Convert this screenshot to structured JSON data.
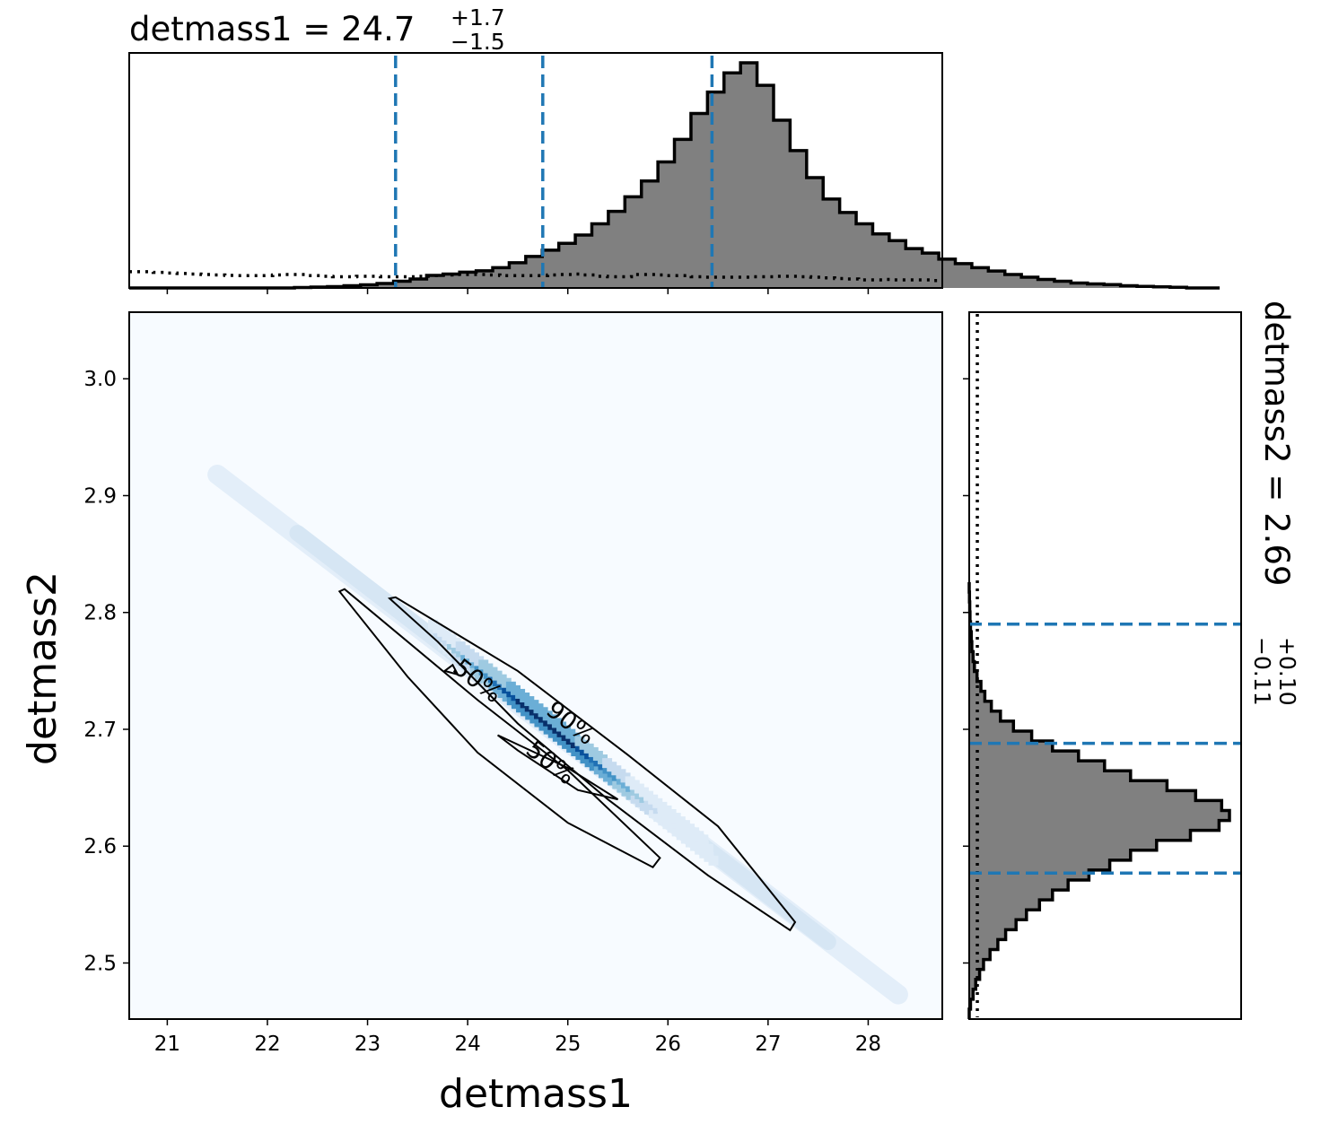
{
  "chart_data": [
    {
      "panel": "marginal-top",
      "type": "step-histogram",
      "parameter": "detmass1",
      "title": {
        "prefix": "detmass1 = ",
        "value": "24.7",
        "upper": "+1.7",
        "lower": "−1.5"
      },
      "xlim": [
        20.62,
        28.74
      ],
      "bin_edges_start": 20.62,
      "bin_width": 0.165,
      "density": [
        0.0,
        0.0,
        0.0,
        0.0,
        0.0,
        0.0,
        0.0,
        0.0,
        0.0,
        0.0,
        0.002,
        0.004,
        0.006,
        0.01,
        0.014,
        0.02,
        0.03,
        0.04,
        0.056,
        0.062,
        0.07,
        0.076,
        0.09,
        0.112,
        0.14,
        0.168,
        0.198,
        0.235,
        0.285,
        0.34,
        0.405,
        0.475,
        0.56,
        0.66,
        0.775,
        0.87,
        0.955,
        1.0,
        0.9,
        0.745,
        0.61,
        0.49,
        0.395,
        0.335,
        0.285,
        0.24,
        0.21,
        0.175,
        0.155,
        0.128,
        0.108,
        0.09,
        0.075,
        0.06,
        0.048,
        0.038,
        0.03,
        0.022,
        0.018,
        0.015,
        0.01,
        0.007,
        0.005,
        0.003,
        0.0,
        0.0
      ],
      "prior_density_dotted": [
        0.072,
        0.072,
        0.069,
        0.066,
        0.064,
        0.062,
        0.06,
        0.058,
        0.056,
        0.055,
        0.055,
        0.055,
        0.058,
        0.06,
        0.06,
        0.055,
        0.052,
        0.05,
        0.05,
        0.052,
        0.052,
        0.05,
        0.05,
        0.05,
        0.052,
        0.055,
        0.058,
        0.06,
        0.06,
        0.06,
        0.058,
        0.055,
        0.055,
        0.055,
        0.055,
        0.058,
        0.06,
        0.062,
        0.058,
        0.052,
        0.05,
        0.05,
        0.06,
        0.06,
        0.058,
        0.055,
        0.055,
        0.05,
        0.048,
        0.048,
        0.048,
        0.048,
        0.05,
        0.05,
        0.052,
        0.052,
        0.05,
        0.048,
        0.045,
        0.042,
        0.04,
        0.036,
        0.036,
        0.038,
        0.036,
        0.036,
        0.036,
        0.033
      ],
      "quantile_lines": [
        23.28,
        24.75,
        26.44
      ],
      "xticks": [
        21,
        22,
        23,
        24,
        25,
        26,
        27,
        28
      ]
    },
    {
      "panel": "joint",
      "type": "heatmap",
      "xlabel": "detmass1",
      "ylabel": "detmass2",
      "xlim": [
        20.62,
        28.74
      ],
      "ylim": [
        2.452,
        3.057
      ],
      "xticks": [
        "21",
        "22",
        "23",
        "24",
        "25",
        "26",
        "27",
        "28"
      ],
      "yticks": [
        "2.5",
        "2.6",
        "2.7",
        "2.8",
        "2.9",
        "3.0"
      ],
      "colormap": "Blues",
      "ridge_line": [
        [
          21.5,
          2.918
        ],
        [
          28.3,
          2.473
        ]
      ],
      "density_ridge": [
        [
          23.8,
          2.775
        ],
        [
          24.2,
          2.75
        ],
        [
          24.6,
          2.724
        ],
        [
          25.0,
          2.698
        ],
        [
          25.4,
          2.672
        ],
        [
          25.8,
          2.646
        ]
      ],
      "contours": [
        {
          "label": "90%",
          "points": [
            [
              22.72,
              2.818
            ],
            [
              22.77,
              2.82
            ],
            [
              24.1,
              2.725
            ],
            [
              25.0,
              2.665
            ],
            [
              25.92,
              2.59
            ],
            [
              25.85,
              2.582
            ],
            [
              25.0,
              2.62
            ],
            [
              24.1,
              2.68
            ],
            [
              23.4,
              2.745
            ]
          ]
        },
        {
          "label": "90%",
          "points": [
            [
              23.22,
              2.812
            ],
            [
              23.28,
              2.813
            ],
            [
              24.5,
              2.75
            ],
            [
              25.6,
              2.678
            ],
            [
              26.5,
              2.617
            ],
            [
              27.27,
              2.535
            ],
            [
              27.22,
              2.528
            ],
            [
              26.4,
              2.575
            ],
            [
              25.4,
              2.64
            ],
            [
              24.5,
              2.705
            ],
            [
              23.7,
              2.775
            ]
          ]
        },
        {
          "label": "50%",
          "points": [
            [
              23.77,
              2.75
            ],
            [
              23.9,
              2.747
            ],
            [
              23.85,
              2.755
            ]
          ]
        },
        {
          "label": "50%",
          "points": [
            [
              24.3,
              2.695
            ],
            [
              25.0,
              2.667
            ],
            [
              25.5,
              2.64
            ],
            [
              25.1,
              2.648
            ],
            [
              24.5,
              2.682
            ]
          ]
        }
      ],
      "contour_labels": [
        {
          "text": "50%",
          "x": 24.05,
          "y": 2.736,
          "angle": 38
        },
        {
          "text": "90%",
          "x": 24.98,
          "y": 2.7,
          "angle": 38
        },
        {
          "text": "50%",
          "x": 24.78,
          "y": 2.666,
          "angle": 38
        }
      ]
    },
    {
      "panel": "marginal-right",
      "type": "step-histogram",
      "parameter": "detmass2",
      "title": {
        "prefix": "detmass2 = ",
        "value": "2.69",
        "upper": "+0.10",
        "lower": "−0.11"
      },
      "ylim": [
        2.452,
        3.057
      ],
      "bin_edges_start": 2.452,
      "bin_width": 0.0085,
      "density": [
        0.0,
        0.005,
        0.015,
        0.025,
        0.04,
        0.055,
        0.08,
        0.11,
        0.14,
        0.18,
        0.22,
        0.27,
        0.32,
        0.38,
        0.46,
        0.54,
        0.62,
        0.72,
        0.85,
        0.96,
        1.0,
        0.97,
        0.87,
        0.76,
        0.62,
        0.52,
        0.42,
        0.32,
        0.24,
        0.17,
        0.12,
        0.085,
        0.06,
        0.045,
        0.03,
        0.02,
        0.015,
        0.01,
        0.008,
        0.005,
        0.003,
        0.002,
        0.001,
        0.0
      ],
      "prior_density_dotted": 0.045,
      "quantile_lines": [
        2.577,
        2.688,
        2.79
      ],
      "yticks": [
        2.5,
        2.6,
        2.7,
        2.8,
        2.9,
        3.0
      ]
    }
  ]
}
